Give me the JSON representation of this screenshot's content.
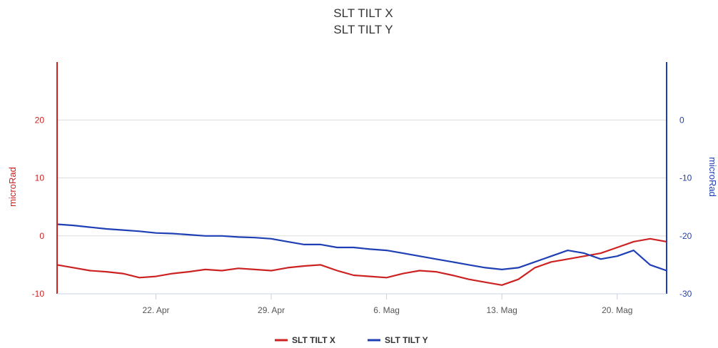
{
  "chart_data": {
    "type": "line",
    "title_lines": [
      "SLT TILT X",
      "SLT TILT Y"
    ],
    "y_left": {
      "label": "microRad",
      "range": [
        -10,
        30
      ],
      "ticks": [
        -10,
        0,
        10,
        20
      ],
      "color": "#cc2222"
    },
    "y_right": {
      "label": "microRad",
      "range": [
        -30,
        10
      ],
      "ticks": [
        -30,
        -20,
        -10,
        0
      ],
      "color": "#1f3fb5"
    },
    "x": {
      "range": [
        "2025-04-16",
        "2025-05-23"
      ],
      "ticks": [
        "22. Apr",
        "29. Apr",
        "6. Mag",
        "13. Mag",
        "20. Mag"
      ]
    },
    "grid": true,
    "legend": {
      "placement": "bottom-center"
    },
    "series": [
      {
        "name": "SLT TILT X",
        "axis": "left",
        "color": "#cc2222",
        "points": [
          [
            "2025-04-16",
            -5.0
          ],
          [
            "2025-04-17",
            -5.5
          ],
          [
            "2025-04-18",
            -6.0
          ],
          [
            "2025-04-19",
            -6.2
          ],
          [
            "2025-04-20",
            -6.5
          ],
          [
            "2025-04-21",
            -7.2
          ],
          [
            "2025-04-22",
            -7.0
          ],
          [
            "2025-04-23",
            -6.5
          ],
          [
            "2025-04-24",
            -6.2
          ],
          [
            "2025-04-25",
            -5.8
          ],
          [
            "2025-04-26",
            -6.0
          ],
          [
            "2025-04-27",
            -5.6
          ],
          [
            "2025-04-28",
            -5.8
          ],
          [
            "2025-04-29",
            -6.0
          ],
          [
            "2025-04-30",
            -5.5
          ],
          [
            "2025-05-01",
            -5.2
          ],
          [
            "2025-05-02",
            -5.0
          ],
          [
            "2025-05-03",
            -6.0
          ],
          [
            "2025-05-04",
            -6.8
          ],
          [
            "2025-05-05",
            -7.0
          ],
          [
            "2025-05-06",
            -7.2
          ],
          [
            "2025-05-07",
            -6.5
          ],
          [
            "2025-05-08",
            -6.0
          ],
          [
            "2025-05-09",
            -6.2
          ],
          [
            "2025-05-10",
            -6.8
          ],
          [
            "2025-05-11",
            -7.5
          ],
          [
            "2025-05-12",
            -8.0
          ],
          [
            "2025-05-13",
            -8.5
          ],
          [
            "2025-05-14",
            -7.5
          ],
          [
            "2025-05-15",
            -5.5
          ],
          [
            "2025-05-16",
            -4.5
          ],
          [
            "2025-05-17",
            -4.0
          ],
          [
            "2025-05-18",
            -3.5
          ],
          [
            "2025-05-19",
            -3.0
          ],
          [
            "2025-05-20",
            -2.0
          ],
          [
            "2025-05-21",
            -1.0
          ],
          [
            "2025-05-22",
            -0.5
          ],
          [
            "2025-05-23",
            -1.0
          ]
        ]
      },
      {
        "name": "SLT TILT Y",
        "axis": "right",
        "color": "#1f3fb5",
        "points": [
          [
            "2025-04-16",
            -18.0
          ],
          [
            "2025-04-17",
            -18.2
          ],
          [
            "2025-04-18",
            -18.5
          ],
          [
            "2025-04-19",
            -18.8
          ],
          [
            "2025-04-20",
            -19.0
          ],
          [
            "2025-04-21",
            -19.2
          ],
          [
            "2025-04-22",
            -19.5
          ],
          [
            "2025-04-23",
            -19.6
          ],
          [
            "2025-04-24",
            -19.8
          ],
          [
            "2025-04-25",
            -20.0
          ],
          [
            "2025-04-26",
            -20.0
          ],
          [
            "2025-04-27",
            -20.2
          ],
          [
            "2025-04-28",
            -20.3
          ],
          [
            "2025-04-29",
            -20.5
          ],
          [
            "2025-04-30",
            -21.0
          ],
          [
            "2025-05-01",
            -21.5
          ],
          [
            "2025-05-02",
            -21.5
          ],
          [
            "2025-05-03",
            -22.0
          ],
          [
            "2025-05-04",
            -22.0
          ],
          [
            "2025-05-05",
            -22.3
          ],
          [
            "2025-05-06",
            -22.5
          ],
          [
            "2025-05-07",
            -23.0
          ],
          [
            "2025-05-08",
            -23.5
          ],
          [
            "2025-05-09",
            -24.0
          ],
          [
            "2025-05-10",
            -24.5
          ],
          [
            "2025-05-11",
            -25.0
          ],
          [
            "2025-05-12",
            -25.5
          ],
          [
            "2025-05-13",
            -25.8
          ],
          [
            "2025-05-14",
            -25.5
          ],
          [
            "2025-05-15",
            -24.5
          ],
          [
            "2025-05-16",
            -23.5
          ],
          [
            "2025-05-17",
            -22.5
          ],
          [
            "2025-05-18",
            -23.0
          ],
          [
            "2025-05-19",
            -24.0
          ],
          [
            "2025-05-20",
            -23.5
          ],
          [
            "2025-05-21",
            -22.5
          ],
          [
            "2025-05-22",
            -25.0
          ],
          [
            "2025-05-23",
            -26.0
          ]
        ]
      }
    ]
  }
}
